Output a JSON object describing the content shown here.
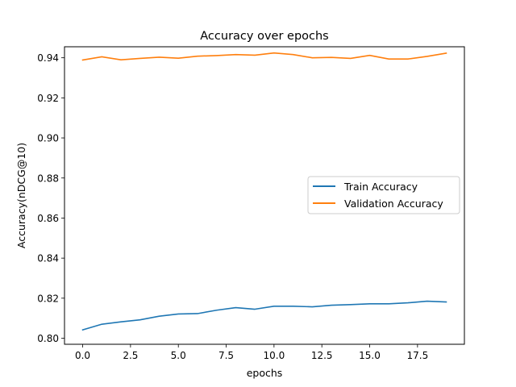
{
  "chart_data": {
    "type": "line",
    "title": "Accuracy over epochs",
    "xlabel": "epochs",
    "ylabel": "Accuracy(nDCG@10)",
    "xlim": [
      -0.95,
      19.95
    ],
    "ylim": [
      0.797,
      0.9455
    ],
    "x": [
      0,
      1,
      2,
      3,
      4,
      5,
      6,
      7,
      8,
      9,
      10,
      11,
      12,
      13,
      14,
      15,
      16,
      17,
      18,
      19
    ],
    "xticks": [
      0.0,
      2.5,
      5.0,
      7.5,
      10.0,
      12.5,
      15.0,
      17.5
    ],
    "xtick_labels": [
      "0.0",
      "2.5",
      "5.0",
      "7.5",
      "10.0",
      "12.5",
      "15.0",
      "17.5"
    ],
    "yticks": [
      0.8,
      0.82,
      0.84,
      0.86,
      0.88,
      0.9,
      0.92,
      0.94
    ],
    "ytick_labels": [
      "0.80",
      "0.82",
      "0.84",
      "0.86",
      "0.88",
      "0.90",
      "0.92",
      "0.94"
    ],
    "grid": false,
    "legend_position": "center-right",
    "series": [
      {
        "name": "Train Accuracy",
        "color": "#1f77b4",
        "values": [
          0.8042,
          0.807,
          0.8082,
          0.8092,
          0.811,
          0.8121,
          0.8123,
          0.814,
          0.8153,
          0.8145,
          0.816,
          0.816,
          0.8157,
          0.8165,
          0.8168,
          0.8172,
          0.8172,
          0.8177,
          0.8185,
          0.8181
        ]
      },
      {
        "name": "Validation Accuracy",
        "color": "#ff7f0e",
        "values": [
          0.9389,
          0.9405,
          0.939,
          0.9397,
          0.9403,
          0.9398,
          0.9408,
          0.9411,
          0.9416,
          0.9413,
          0.9424,
          0.9416,
          0.94,
          0.9402,
          0.9397,
          0.9412,
          0.9394,
          0.9394,
          0.9407,
          0.9423
        ]
      }
    ]
  }
}
